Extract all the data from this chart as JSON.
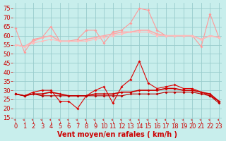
{
  "x": [
    0,
    1,
    2,
    3,
    4,
    5,
    6,
    7,
    8,
    9,
    10,
    11,
    12,
    13,
    14,
    15,
    16,
    17,
    18,
    19,
    20,
    21,
    22,
    23
  ],
  "rafales_spiky": [
    64,
    51,
    58,
    59,
    65,
    57,
    57,
    58,
    63,
    63,
    56,
    62,
    63,
    67,
    75,
    74,
    63,
    60,
    60,
    60,
    60,
    54,
    72,
    59
  ],
  "rafales_smooth": [
    55,
    54,
    57,
    59,
    60,
    57,
    57,
    57,
    58,
    59,
    60,
    61,
    62,
    62,
    63,
    63,
    61,
    60,
    60,
    60,
    60,
    58,
    60,
    59
  ],
  "rafales_flat": [
    55,
    54,
    56,
    57,
    58,
    57,
    57,
    57,
    57,
    58,
    59,
    60,
    61,
    62,
    62,
    62,
    60,
    60,
    60,
    60,
    60,
    58,
    60,
    59
  ],
  "vent_spiky": [
    28,
    27,
    29,
    30,
    30,
    24,
    24,
    20,
    27,
    30,
    32,
    23,
    32,
    36,
    46,
    34,
    31,
    32,
    33,
    31,
    31,
    29,
    27,
    24
  ],
  "vent_smooth": [
    28,
    27,
    28,
    28,
    29,
    28,
    27,
    27,
    27,
    28,
    28,
    28,
    29,
    29,
    30,
    30,
    30,
    31,
    31,
    30,
    30,
    29,
    28,
    24
  ],
  "vent_flat": [
    28,
    27,
    28,
    27,
    27,
    27,
    27,
    27,
    27,
    27,
    27,
    27,
    27,
    28,
    28,
    28,
    28,
    29,
    29,
    29,
    29,
    28,
    27,
    23
  ],
  "bg_color": "#c8eeec",
  "grid_color": "#99cccc",
  "rafales_spiky_color": "#ff9999",
  "rafales_smooth_color": "#ffaaaa",
  "rafales_flat_color": "#ffbbbb",
  "vent_spiky_color": "#dd0000",
  "vent_smooth_color": "#cc0000",
  "vent_flat_color": "#bb0000",
  "xlabel": "Vent moyen/en rafales ( km/h )",
  "ylim": [
    13,
    78
  ],
  "yticks": [
    15,
    20,
    25,
    30,
    35,
    40,
    45,
    50,
    55,
    60,
    65,
    70,
    75
  ],
  "xticks": [
    0,
    1,
    2,
    3,
    4,
    5,
    6,
    7,
    8,
    9,
    10,
    11,
    12,
    13,
    14,
    15,
    16,
    17,
    18,
    19,
    20,
    21,
    22,
    23
  ],
  "xlabel_color": "#cc0000",
  "xlabel_fontsize": 7,
  "tick_fontsize": 6,
  "marker_size": 2.0,
  "lw_spiky": 0.8,
  "lw_smooth": 1.2,
  "lw_flat": 0.8
}
